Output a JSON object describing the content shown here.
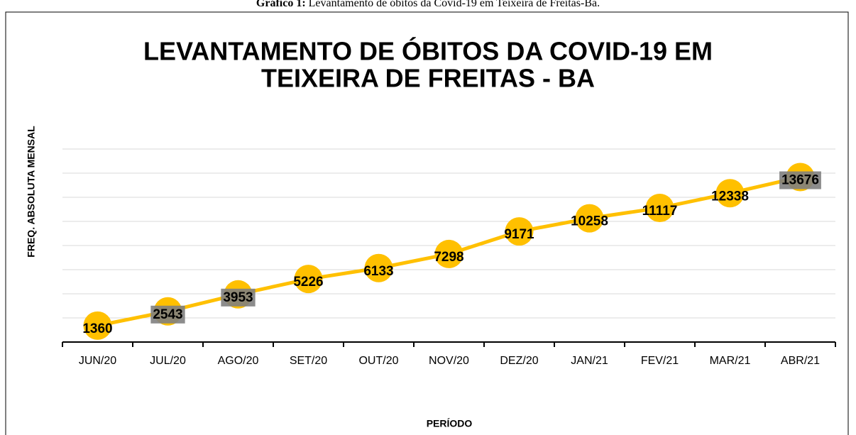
{
  "caption_label": "Gráfico 1:",
  "caption_text": "Levantamento de óbitos da Covid-19 em Teixeira de Freitas-Ba.",
  "chart_data": {
    "type": "line",
    "title": [
      "LEVANTAMENTO DE ÓBITOS DA COVID-19 EM",
      "TEIXEIRA DE FREITAS - BA"
    ],
    "y_label": "FREQ. ABSOLUTA MENSAL",
    "x_label": "PERÍODO",
    "categories": [
      "JUN/20",
      "JUL/20",
      "AGO/20",
      "SET/20",
      "OUT/20",
      "NOV/20",
      "DEZ/20",
      "JAN/21",
      "FEV/21",
      "MAR/21",
      "ABR/21"
    ],
    "series": [
      {
        "name": "Óbitos",
        "color": "#ffc000",
        "values": [
          1360,
          2543,
          3953,
          5226,
          6133,
          7298,
          9171,
          10258,
          11117,
          12338,
          13676
        ]
      }
    ],
    "label_boxes": [
      false,
      true,
      true,
      false,
      false,
      false,
      false,
      false,
      false,
      false,
      true
    ],
    "ylim": [
      0,
      16000
    ],
    "yticks": [
      0,
      2000,
      4000,
      6000,
      8000,
      10000,
      12000,
      14000,
      16000
    ],
    "grid": true
  }
}
